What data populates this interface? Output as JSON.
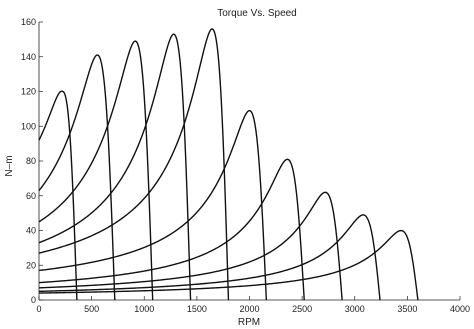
{
  "chart_data": {
    "type": "line",
    "title": "Torque Vs. Speed",
    "xlabel": "RPM",
    "ylabel": "N–m",
    "xlim": [
      0,
      4000
    ],
    "ylim": [
      0,
      160
    ],
    "xticks": [
      "0",
      "500",
      "1000",
      "1500",
      "2000",
      "2500",
      "3000",
      "3500",
      "4000"
    ],
    "yticks": [
      "0",
      "20",
      "40",
      "60",
      "80",
      "100",
      "120",
      "140",
      "160"
    ],
    "grid": false,
    "legend": "none",
    "line_color": "#111111",
    "series": [
      {
        "sync_rpm": 360,
        "peak_rpm": 225,
        "peak_torque": 120,
        "start_torque": 92
      },
      {
        "sync_rpm": 720,
        "peak_rpm": 555,
        "peak_torque": 141,
        "start_torque": 63
      },
      {
        "sync_rpm": 1080,
        "peak_rpm": 915,
        "peak_torque": 149,
        "start_torque": 45
      },
      {
        "sync_rpm": 1440,
        "peak_rpm": 1280,
        "peak_torque": 153,
        "start_torque": 33
      },
      {
        "sync_rpm": 1800,
        "peak_rpm": 1645,
        "peak_torque": 156,
        "start_torque": 27
      },
      {
        "sync_rpm": 2160,
        "peak_rpm": 2000,
        "peak_torque": 109,
        "start_torque": 17
      },
      {
        "sync_rpm": 2520,
        "peak_rpm": 2360,
        "peak_torque": 81,
        "start_torque": 10
      },
      {
        "sync_rpm": 2880,
        "peak_rpm": 2720,
        "peak_torque": 62,
        "start_torque": 7
      },
      {
        "sync_rpm": 3240,
        "peak_rpm": 3080,
        "peak_torque": 49,
        "start_torque": 5
      },
      {
        "sync_rpm": 3600,
        "peak_rpm": 3440,
        "peak_torque": 40,
        "start_torque": 4
      }
    ]
  }
}
